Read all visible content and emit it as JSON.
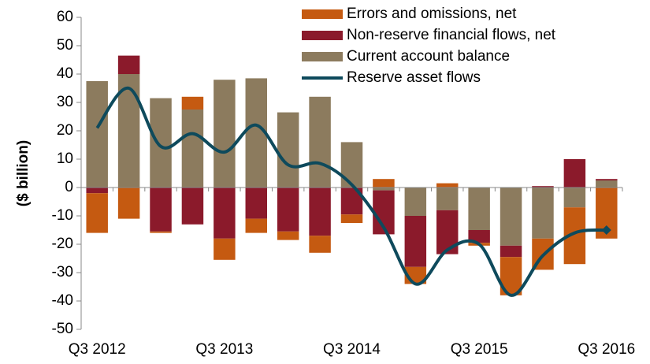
{
  "chart_data": {
    "type": "stacked-bar-line",
    "y_label": "($ billion)",
    "categories": [
      "Q3 2012",
      null,
      null,
      null,
      "Q3 2013",
      null,
      null,
      null,
      "Q3 2014",
      null,
      null,
      null,
      "Q3 2015",
      null,
      null,
      null,
      "Q3 2016"
    ],
    "series": [
      {
        "name": "Errors and omissions, net",
        "color": "#c55a11",
        "kind": "bar",
        "values": [
          -14,
          -11,
          -0.5,
          4.5,
          -7.5,
          -5,
          -3,
          -6,
          -3,
          3,
          -6,
          1.5,
          -1,
          -13.5,
          -11,
          -20,
          -18
        ]
      },
      {
        "name": "Non-reserve financial flows, net",
        "color": "#8b1a2b",
        "kind": "bar",
        "values": [
          -2,
          6.5,
          -15.5,
          -13,
          -18,
          -11,
          -15.5,
          -17,
          -9.5,
          -15.5,
          -18,
          -15.5,
          -4.5,
          -4,
          0.5,
          10,
          0.5
        ]
      },
      {
        "name": "Current account balance",
        "color": "#8c7b5e",
        "kind": "bar",
        "values": [
          37.5,
          40,
          31.5,
          27.5,
          38,
          38.5,
          26.5,
          32,
          16,
          -1,
          -10,
          -8,
          -15,
          -20.5,
          -18,
          -7,
          2.5
        ]
      },
      {
        "name": "Reserve asset flows",
        "color": "#0e4a5c",
        "kind": "line",
        "values": [
          21,
          35,
          14.5,
          19,
          12.5,
          22,
          8,
          8.5,
          1,
          -14,
          -34,
          -22,
          -20,
          -38,
          -24,
          -16,
          -15
        ]
      }
    ],
    "stack_order": [
      2,
      1,
      0
    ],
    "ylim": [
      -50,
      60
    ],
    "yticks": [
      -50,
      -40,
      -30,
      -20,
      -10,
      0,
      10,
      20,
      30,
      40,
      50,
      60
    ],
    "grid": false,
    "legend": "top-right"
  }
}
